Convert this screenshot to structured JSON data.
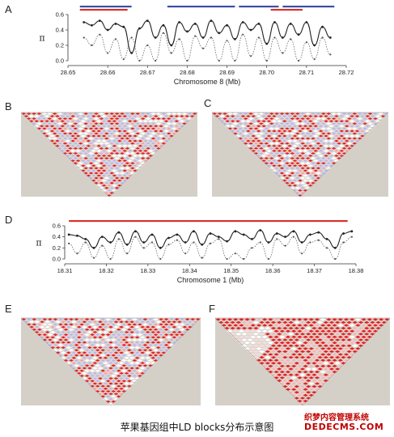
{
  "panel_labels": {
    "a": "A",
    "b": "B",
    "c": "C",
    "d": "D",
    "e": "E",
    "f": "F"
  },
  "caption": "苹果基因组中LD blocks分布示意图",
  "watermark": {
    "line1": "织梦内容管理系统",
    "line2": "DEDECMS.COM"
  },
  "colors": {
    "red_bar": "#d9322e",
    "blue_bar": "#3a4fa8",
    "ld_red": "#e02020",
    "ld_light": "#b9b4e6",
    "ld_white": "#ffffff",
    "ld_bg": "#d4d0c8"
  },
  "chart_data": [
    {
      "type": "line",
      "panel": "A",
      "ylabel": "π",
      "xlabel": "Chromosome 8 (Mb)",
      "xlim": [
        28.65,
        28.72
      ],
      "ylim": [
        0.0,
        0.6
      ],
      "xticks": [
        "28.65",
        "28.66",
        "28.67",
        "28.68",
        "28.69",
        "28.70",
        "28.71",
        "28.72"
      ],
      "yticks": [
        "0.0",
        "0.2",
        "0.4",
        "0.6"
      ],
      "bars_red": [
        [
          28.653,
          28.665
        ],
        [
          28.701,
          28.709
        ]
      ],
      "bars_blue": [
        [
          28.653,
          28.666
        ],
        [
          28.675,
          28.692
        ],
        [
          28.693,
          28.703
        ],
        [
          28.704,
          28.717
        ]
      ],
      "series": [
        {
          "style": "solid",
          "x": [
            28.654,
            28.656,
            28.658,
            28.66,
            28.662,
            28.664,
            28.666,
            28.668,
            28.67,
            28.672,
            28.674,
            28.676,
            28.678,
            28.68,
            28.682,
            28.684,
            28.686,
            28.688,
            28.69,
            28.692,
            28.694,
            28.696,
            28.698,
            28.7,
            28.702,
            28.704,
            28.706,
            28.708,
            28.71,
            28.712,
            28.714,
            28.716
          ],
          "y": [
            0.5,
            0.46,
            0.52,
            0.4,
            0.48,
            0.44,
            0.1,
            0.42,
            0.52,
            0.3,
            0.46,
            0.2,
            0.5,
            0.38,
            0.48,
            0.3,
            0.52,
            0.36,
            0.46,
            0.28,
            0.5,
            0.4,
            0.48,
            0.22,
            0.5,
            0.3,
            0.48,
            0.34,
            0.5,
            0.2,
            0.44,
            0.3
          ]
        },
        {
          "style": "dotted",
          "x": [
            28.654,
            28.656,
            28.658,
            28.66,
            28.662,
            28.664,
            28.666,
            28.668,
            28.67,
            28.672,
            28.674,
            28.676,
            28.678,
            28.68,
            28.682,
            28.684,
            28.686,
            28.688,
            28.69,
            28.692,
            28.694,
            28.696,
            28.698,
            28.7,
            28.702,
            28.704,
            28.706,
            28.708,
            28.71,
            28.712,
            28.714,
            28.716
          ],
          "y": [
            0.3,
            0.2,
            0.34,
            0.1,
            0.28,
            0.02,
            0.3,
            0.0,
            0.2,
            0.0,
            0.36,
            0.1,
            0.28,
            0.0,
            0.32,
            0.16,
            0.3,
            0.0,
            0.26,
            0.0,
            0.34,
            0.06,
            0.3,
            0.0,
            0.3,
            0.1,
            0.28,
            0.0,
            0.24,
            0.02,
            0.3,
            0.08
          ]
        }
      ]
    },
    {
      "type": "line",
      "panel": "D",
      "ylabel": "π",
      "xlabel": "Chromosome 1 (Mb)",
      "xlim": [
        18.31,
        18.38
      ],
      "ylim": [
        0.0,
        0.6
      ],
      "xticks": [
        "18.31",
        "18.32",
        "18.33",
        "18.34",
        "18.35",
        "18.36",
        "18.37",
        "18.38"
      ],
      "yticks": [
        "0.0",
        "0.2",
        "0.4",
        "0.6"
      ],
      "bars_red": [
        [
          18.311,
          18.378
        ]
      ],
      "bars_blue": [],
      "series": [
        {
          "style": "solid",
          "x": [
            18.311,
            18.313,
            18.315,
            18.317,
            18.319,
            18.321,
            18.323,
            18.325,
            18.327,
            18.329,
            18.331,
            18.333,
            18.335,
            18.337,
            18.339,
            18.341,
            18.343,
            18.345,
            18.347,
            18.349,
            18.351,
            18.353,
            18.355,
            18.357,
            18.359,
            18.361,
            18.363,
            18.365,
            18.367,
            18.369,
            18.371,
            18.373,
            18.375,
            18.377,
            18.379
          ],
          "y": [
            0.44,
            0.42,
            0.36,
            0.2,
            0.4,
            0.3,
            0.48,
            0.26,
            0.5,
            0.3,
            0.44,
            0.2,
            0.38,
            0.44,
            0.3,
            0.5,
            0.26,
            0.46,
            0.4,
            0.32,
            0.5,
            0.44,
            0.36,
            0.52,
            0.3,
            0.46,
            0.4,
            0.5,
            0.3,
            0.44,
            0.48,
            0.36,
            0.2,
            0.46,
            0.5
          ]
        },
        {
          "style": "dotted",
          "x": [
            18.311,
            18.313,
            18.315,
            18.317,
            18.319,
            18.321,
            18.323,
            18.325,
            18.327,
            18.329,
            18.331,
            18.333,
            18.335,
            18.337,
            18.339,
            18.341,
            18.343,
            18.345,
            18.347,
            18.349,
            18.351,
            18.353,
            18.355,
            18.357,
            18.359,
            18.361,
            18.363,
            18.365,
            18.367,
            18.369,
            18.371,
            18.373,
            18.375,
            18.377,
            18.379
          ],
          "y": [
            0.28,
            0.1,
            0.3,
            0.02,
            0.24,
            0.0,
            0.36,
            0.1,
            0.4,
            0.2,
            0.3,
            0.0,
            0.26,
            0.34,
            0.1,
            0.3,
            0.02,
            0.28,
            0.36,
            0.0,
            0.1,
            0.0,
            0.2,
            0.3,
            0.0,
            0.36,
            0.24,
            0.4,
            0.1,
            0.3,
            0.34,
            0.2,
            0.0,
            0.3,
            0.4
          ]
        }
      ]
    }
  ]
}
